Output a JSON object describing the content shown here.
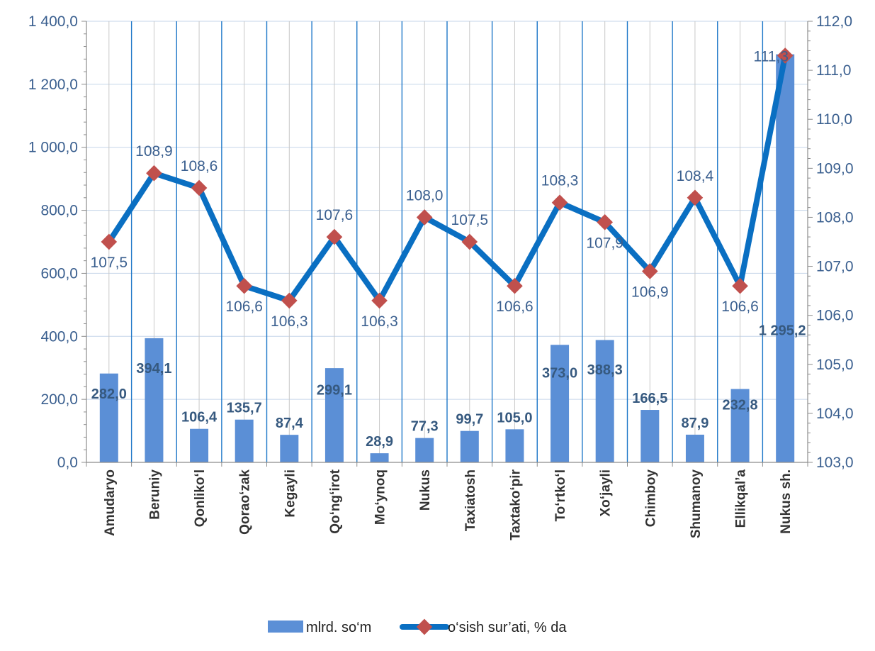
{
  "chart_data": {
    "type": "bar",
    "categories": [
      "Amudaryo",
      "Beruniy",
      "Qonliko‘l",
      "Qorao‘zak",
      "Kegayli",
      "Qo‘ng‘irot",
      "Mo‘ynoq",
      "Nukus",
      "Taxiatosh",
      "Taxtako‘pir",
      "To‘rtko‘l",
      "Xo‘jayli",
      "Chimboy",
      "Shumanoy",
      "Ellikqal’a",
      "Nukus sh."
    ],
    "series": [
      {
        "name": "mlrd. so‘m",
        "type": "bar",
        "axis": "left",
        "color": "#5b8fd6",
        "values": [
          282.0,
          394.1,
          106.4,
          135.7,
          87.4,
          299.1,
          28.9,
          77.3,
          99.7,
          105.0,
          373.0,
          388.3,
          166.5,
          87.9,
          232.8,
          1295.2
        ],
        "labels": [
          "282,0",
          "394,1",
          "106,4",
          "135,7",
          "87,4",
          "299,1",
          "28,9",
          "77,3",
          "99,7",
          "105,0",
          "373,0",
          "388,3",
          "166,5",
          "87,9",
          "232,8",
          "1 295,2"
        ]
      },
      {
        "name": "o‘sish sur’ati, % da",
        "type": "line",
        "axis": "right",
        "color": "#0a6fc2",
        "marker_color": "#c0504d",
        "values": [
          107.5,
          108.9,
          108.6,
          106.6,
          106.3,
          107.6,
          106.3,
          108.0,
          107.5,
          106.6,
          108.3,
          107.9,
          106.9,
          108.4,
          106.6,
          111.3
        ],
        "labels": [
          "107,5",
          "108,9",
          "108,6",
          "106,6",
          "106,3",
          "107,6",
          "106,3",
          "108,0",
          "107,5",
          "106,6",
          "108,3",
          "107,9",
          "106,9",
          "108,4",
          "106,6",
          "111,3"
        ]
      }
    ],
    "y_left": {
      "min": 0,
      "max": 1400,
      "ticks": [
        0,
        200,
        400,
        600,
        800,
        1000,
        1200,
        1400
      ],
      "tick_labels": [
        "0,0",
        "200,0",
        "400,0",
        "600,0",
        "800,0",
        "1 000,0",
        "1 200,0",
        "1 400,0"
      ]
    },
    "y_right": {
      "min": 103,
      "max": 112,
      "ticks": [
        103,
        104,
        105,
        106,
        107,
        108,
        109,
        110,
        111,
        112
      ],
      "tick_labels": [
        "103,0",
        "104,0",
        "105,0",
        "106,0",
        "107,0",
        "108,0",
        "109,0",
        "110,0",
        "111,0",
        "112,0"
      ]
    },
    "grid": true,
    "legend": "bottom"
  }
}
